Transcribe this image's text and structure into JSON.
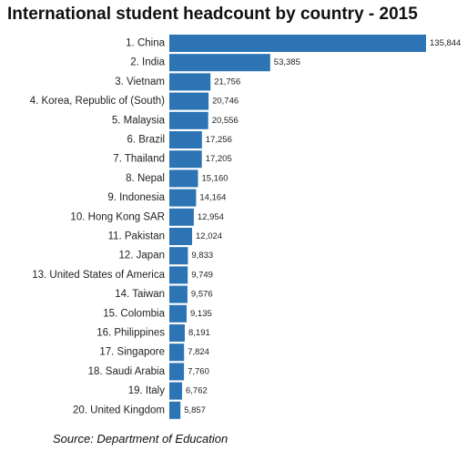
{
  "title": "International student headcount by country - 2015",
  "source": "Source: Department of Education",
  "colors": {
    "bar": "#2c74b4",
    "text": "#222222"
  },
  "chart_data": {
    "type": "bar",
    "orientation": "horizontal",
    "title": "International student headcount by country - 2015",
    "xlabel": "",
    "ylabel": "",
    "grid": false,
    "categories": [
      "1. China",
      "2. India",
      "3. Vietnam",
      "4. Korea, Republic of (South)",
      "5. Malaysia",
      "6. Brazil",
      "7. Thailand",
      "8. Nepal",
      "9. Indonesia",
      "10. Hong Kong SAR",
      "11. Pakistan",
      "12. Japan",
      "13. United States of America",
      "14. Taiwan",
      "15. Colombia",
      "16. Philippines",
      "17. Singapore",
      "18. Saudi Arabia",
      "19. Italy",
      "20. United Kingdom"
    ],
    "values": [
      135844,
      53385,
      21756,
      20746,
      20556,
      17256,
      17205,
      15160,
      14164,
      12954,
      12024,
      9833,
      9749,
      9576,
      9135,
      8191,
      7824,
      7760,
      6762,
      5857
    ],
    "value_labels": [
      "135,844",
      "53,385",
      "21,756",
      "20,746",
      "20,556",
      "17,256",
      "17,205",
      "15,160",
      "14,164",
      "12,954",
      "12,024",
      "9,833",
      "9,749",
      "9,576",
      "9,135",
      "8,191",
      "7,824",
      "7,760",
      "6,762",
      "5,857"
    ]
  }
}
